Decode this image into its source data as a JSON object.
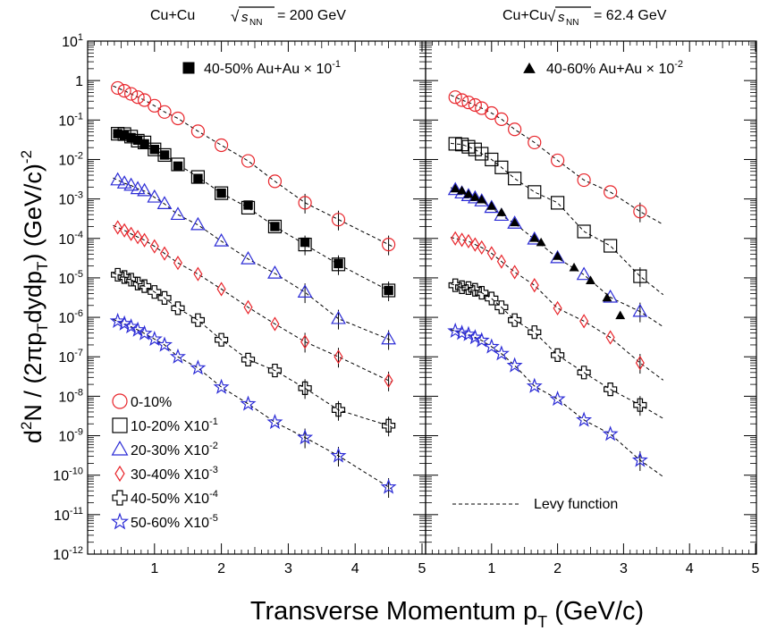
{
  "chart_data": {
    "type": "scatter",
    "ylabel": "d²N / (2πp_T dydp_T) (GeV/c)⁻²",
    "xlabel": "Transverse Momentum p_T (GeV/c)",
    "log_y": true,
    "xlim": [
      0,
      5
    ],
    "ylim_exponents": [
      -12,
      1
    ],
    "x_ticks": [
      "1",
      "2",
      "3",
      "4",
      "5"
    ],
    "y_ticks": [
      {
        "base": "10",
        "exp": "1"
      },
      {
        "base": "1",
        "exp": ""
      },
      {
        "base": "10",
        "exp": "-1"
      },
      {
        "base": "10",
        "exp": "-2"
      },
      {
        "base": "10",
        "exp": "-3"
      },
      {
        "base": "10",
        "exp": "-4"
      },
      {
        "base": "10",
        "exp": "-5"
      },
      {
        "base": "10",
        "exp": "-6"
      },
      {
        "base": "10",
        "exp": "-7"
      },
      {
        "base": "10",
        "exp": "-8"
      },
      {
        "base": "10",
        "exp": "-9"
      },
      {
        "base": "10",
        "exp": "-10"
      },
      {
        "base": "10",
        "exp": "-11"
      },
      {
        "base": "10",
        "exp": "-12"
      }
    ],
    "series_style": [
      {
        "name": "0-10%",
        "marker": "circle",
        "color": "#e8252b"
      },
      {
        "name": "10-20% X10⁻¹",
        "marker": "square",
        "color": "#000000"
      },
      {
        "name": "20-30% X10⁻²",
        "marker": "triangle",
        "color": "#2b2bd6"
      },
      {
        "name": "30-40% X10⁻³",
        "marker": "diamond",
        "color": "#e8252b"
      },
      {
        "name": "40-50% X10⁻⁴",
        "marker": "cross",
        "color": "#000000"
      },
      {
        "name": "50-60% X10⁻⁵",
        "marker": "star",
        "color": "#2b2bd6"
      }
    ],
    "legend": {
      "placement": "bottom-left",
      "entries": [
        {
          "marker": "circle",
          "color": "#e8252b",
          "text": "0-10%",
          "sup": ""
        },
        {
          "marker": "square",
          "color": "#000000",
          "text": "10-20% X10",
          "sup": "-1"
        },
        {
          "marker": "triangle",
          "color": "#2b2bd6",
          "text": "20-30% X10",
          "sup": "-2"
        },
        {
          "marker": "diamond",
          "color": "#e8252b",
          "text": "30-40% X10",
          "sup": "-3"
        },
        {
          "marker": "cross",
          "color": "#000000",
          "text": "40-50% X10",
          "sup": "-4"
        },
        {
          "marker": "star",
          "color": "#2b2bd6",
          "text": "50-60% X10",
          "sup": "-5"
        }
      ]
    },
    "fit_label": "Levy function",
    "panels": [
      {
        "title_system": "Cu+Cu",
        "title_energy": "= 200 GeV",
        "reference_label": "40-50% Au+Au",
        "reference_scale": "× 10",
        "reference_sup": "-1",
        "reference_marker": "filled-square",
        "fit_xmax": 4.55,
        "series": [
          {
            "name": "0-10%",
            "x": [
              0.45,
              0.55,
              0.65,
              0.75,
              0.85,
              1.0,
              1.15,
              1.35,
              1.65,
              2.0,
              2.4,
              2.8,
              3.25,
              3.75,
              4.5
            ],
            "y": [
              0.65,
              0.55,
              0.46,
              0.38,
              0.32,
              0.23,
              0.16,
              0.11,
              0.052,
              0.023,
              0.0092,
              0.0028,
              0.0008,
              0.0003,
              7e-05
            ]
          },
          {
            "name": "10-20% X10⁻¹",
            "x": [
              0.45,
              0.55,
              0.65,
              0.75,
              0.85,
              1.0,
              1.15,
              1.35,
              1.65,
              2.0,
              2.4,
              2.8,
              3.25,
              3.75,
              4.5
            ],
            "y": [
              0.045,
              0.044,
              0.038,
              0.03,
              0.027,
              0.018,
              0.013,
              0.0075,
              0.0036,
              0.0014,
              0.0006,
              0.0002,
              7e-05,
              2.2e-05,
              4.8e-06
            ]
          },
          {
            "name": "20-30% X10⁻²",
            "x": [
              0.45,
              0.55,
              0.65,
              0.75,
              0.85,
              1.0,
              1.15,
              1.35,
              1.65,
              2.0,
              2.4,
              2.8,
              3.25,
              3.75,
              4.5
            ],
            "y": [
              0.003,
              0.0025,
              0.0022,
              0.0018,
              0.0016,
              0.0011,
              0.00075,
              0.0004,
              0.00022,
              8.5e-05,
              3e-05,
              1.3e-05,
              4.3e-06,
              9.2e-07,
              2.8e-07
            ]
          },
          {
            "name": "30-40% X10⁻³",
            "x": [
              0.45,
              0.55,
              0.65,
              0.75,
              0.85,
              1.0,
              1.15,
              1.35,
              1.65,
              2.0,
              2.4,
              2.8,
              3.25,
              3.75,
              4.5
            ],
            "y": [
              0.00019,
              0.00016,
              0.00013,
              0.000108,
              9.05e-05,
              6.3e-05,
              4.15e-05,
              2.4e-05,
              1.25e-05,
              5.2e-06,
              1.8e-06,
              6.8e-07,
              2.4e-07,
              1e-07,
              2.5e-08
            ]
          },
          {
            "name": "40-50% X10⁻⁴",
            "x": [
              0.45,
              0.55,
              0.65,
              0.75,
              0.85,
              1.0,
              1.15,
              1.35,
              1.65,
              2.0,
              2.4,
              2.8,
              3.25,
              3.75,
              4.5
            ],
            "y": [
              1.2e-05,
              1.05e-05,
              9e-06,
              7.2e-06,
              6.2e-06,
              4.4e-06,
              3.1e-06,
              1.7e-06,
              8.5e-07,
              2.7e-07,
              8.5e-08,
              4.5e-08,
              1.6e-08,
              4.5e-09,
              1.8e-09
            ]
          },
          {
            "name": "50-60% X10⁻⁵",
            "x": [
              0.45,
              0.55,
              0.65,
              0.75,
              0.85,
              1.0,
              1.15,
              1.35,
              1.65,
              2.0,
              2.4,
              2.8,
              3.25,
              3.75,
              4.5
            ],
            "y": [
              8e-07,
              6.9e-07,
              5.8e-07,
              4.8e-07,
              3.9e-07,
              2.8e-07,
              2e-07,
              1e-07,
              5.2e-08,
              1.7e-08,
              6.4e-09,
              2.2e-09,
              9e-10,
              3.1e-10,
              5e-11
            ]
          }
        ],
        "reference": {
          "x": [
            0.45,
            0.55,
            0.65,
            0.75,
            0.85,
            1.0,
            1.15,
            1.35,
            1.65,
            2.0,
            2.4,
            2.8,
            3.25,
            3.75,
            4.5
          ],
          "y": [
            0.045,
            0.042,
            0.036,
            0.031,
            0.025,
            0.018,
            0.013,
            0.0068,
            0.0033,
            0.0014,
            0.0007,
            0.0002,
            8e-05,
            2.3e-05,
            4.8e-06
          ]
        }
      },
      {
        "title_system": "Cu+Cu",
        "title_energy": "= 62.4 GeV",
        "reference_label": "40-60% Au+Au",
        "reference_scale": "× 10",
        "reference_sup": "-2",
        "reference_marker": "filled-triangle",
        "fit_xmax": 3.6,
        "series": [
          {
            "name": "0-10%",
            "x": [
              0.45,
              0.55,
              0.65,
              0.75,
              0.85,
              1.0,
              1.15,
              1.35,
              1.65,
              2.0,
              2.4,
              2.8,
              3.25
            ],
            "y": [
              0.38,
              0.32,
              0.28,
              0.24,
              0.2,
              0.15,
              0.105,
              0.058,
              0.027,
              0.0095,
              0.003,
              0.0015,
              0.00048
            ]
          },
          {
            "name": "10-20% X10⁻¹",
            "x": [
              0.45,
              0.55,
              0.65,
              0.75,
              0.85,
              1.0,
              1.15,
              1.35,
              1.65,
              2.0,
              2.4,
              2.8,
              3.25
            ],
            "y": [
              0.025,
              0.024,
              0.021,
              0.018,
              0.014,
              0.01,
              0.0063,
              0.0033,
              0.0015,
              0.0008,
              0.00015,
              6.5e-05,
              1.1e-05
            ]
          },
          {
            "name": "20-30% X10⁻²",
            "x": [
              0.45,
              0.55,
              0.65,
              0.75,
              0.85,
              1.0,
              1.15,
              1.35,
              1.65,
              2.0,
              2.4,
              2.8,
              3.25
            ],
            "y": [
              0.0017,
              0.0014,
              0.0012,
              0.00105,
              0.00088,
              0.0006,
              0.00038,
              0.00024,
              9.5e-05,
              3.2e-05,
              1.2e-05,
              3.2e-06,
              1.4e-06
            ]
          },
          {
            "name": "30-40% X10⁻³",
            "x": [
              0.45,
              0.55,
              0.65,
              0.75,
              0.85,
              1.0,
              1.15,
              1.35,
              1.65,
              2.0,
              2.4,
              2.8,
              3.25
            ],
            "y": [
              0.0001,
              9.2e-05,
              8.5e-05,
              7e-05,
              5.9e-05,
              4.2e-05,
              2.6e-05,
              1.4e-05,
              6.5e-06,
              1.7e-06,
              8e-07,
              3.1e-07,
              7e-08
            ]
          },
          {
            "name": "40-50% X10⁻⁴",
            "x": [
              0.45,
              0.55,
              0.65,
              0.75,
              0.85,
              1.0,
              1.15,
              1.35,
              1.65,
              2.0,
              2.4,
              2.8,
              3.25
            ],
            "y": [
              6.5e-06,
              5.8e-06,
              5.5e-06,
              5e-06,
              4.2e-06,
              3e-06,
              1.8e-06,
              8.5e-07,
              4.2e-07,
              1.1e-07,
              4e-08,
              1.5e-08,
              6e-09
            ]
          },
          {
            "name": "50-60% X10⁻⁵",
            "x": [
              0.45,
              0.55,
              0.65,
              0.75,
              0.85,
              1.0,
              1.15,
              1.35,
              1.65,
              2.0,
              2.4,
              2.8,
              3.25
            ],
            "y": [
              4.5e-07,
              4e-07,
              3.7e-07,
              3.1e-07,
              2.6e-07,
              1.8e-07,
              1.2e-07,
              6e-08,
              1.8e-08,
              8.5e-09,
              2.5e-09,
              1.1e-09,
              2.4e-10
            ]
          }
        ],
        "reference": {
          "x": [
            0.45,
            0.55,
            0.65,
            0.75,
            0.85,
            1.0,
            1.15,
            1.35,
            1.65,
            1.75,
            2.0,
            2.25,
            2.5,
            2.75,
            2.95
          ],
          "y": [
            0.0018,
            0.0016,
            0.0013,
            0.0011,
            0.00095,
            0.00065,
            0.00045,
            0.00025,
            0.0001,
            7.8e-05,
            3.5e-05,
            1.8e-05,
            8.5e-06,
            3.1e-06,
            1.1e-06
          ]
        }
      }
    ]
  }
}
